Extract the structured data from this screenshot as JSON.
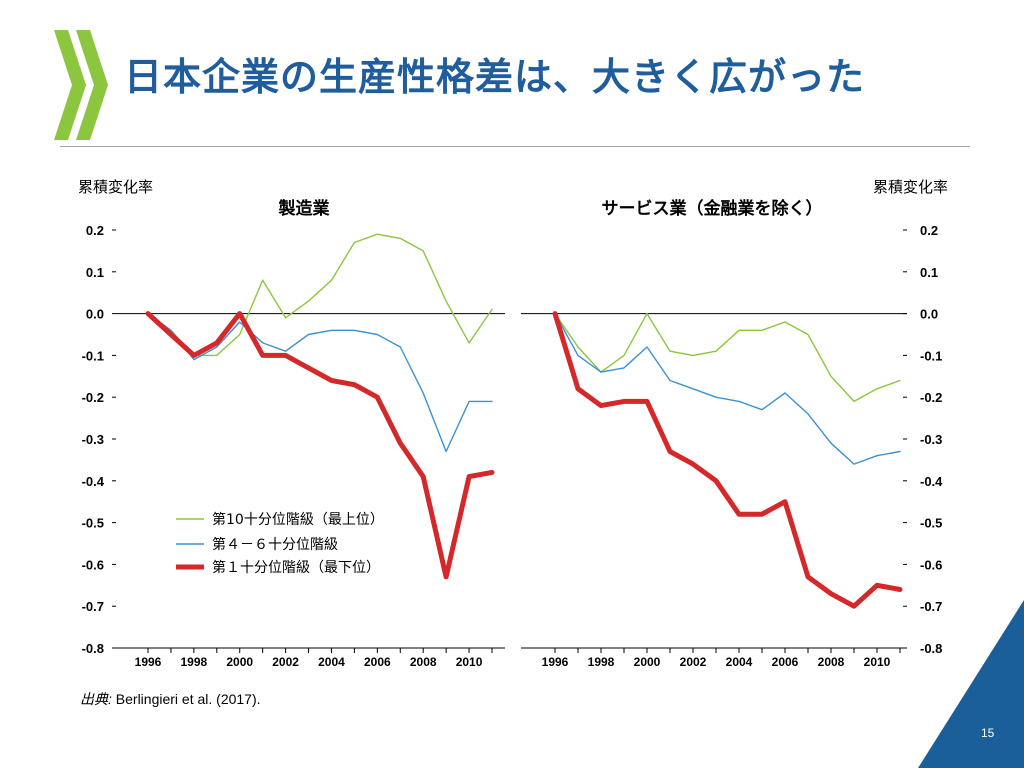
{
  "slide": {
    "title": "日本企業の生産性格差は、大きく広がった",
    "source_prefix": "出典:",
    "source_text": " Berlingieri et al. (2017).",
    "page_number": "15",
    "colors": {
      "title": "#1f5d9c",
      "logo": "#8cc63f",
      "corner": "#1a5f99",
      "rule": "#a6a6a6"
    }
  },
  "icons": {
    "logo": "oecd-chevron-logo",
    "corner": "blue-corner-triangle"
  },
  "chart_data": [
    {
      "type": "line",
      "title": "製造業",
      "ylabel": "累積変化率",
      "ylim": [
        -0.8,
        0.2
      ],
      "yticks": [
        "0.2",
        "0.1",
        "0.0",
        "-0.1",
        "-0.2",
        "-0.3",
        "-0.4",
        "-0.5",
        "-0.6",
        "-0.7",
        "-0.8"
      ],
      "xticks": [
        "1996",
        "1998",
        "2000",
        "2002",
        "2004",
        "2006",
        "2008",
        "2010"
      ],
      "x": [
        1996,
        1997,
        1998,
        1999,
        2000,
        2001,
        2002,
        2003,
        2004,
        2005,
        2006,
        2007,
        2008,
        2009,
        2010,
        2011
      ],
      "series": [
        {
          "name": "第10十分位階級（最上位）",
          "color": "#8cc63f",
          "width": 1.4,
          "values": [
            0.0,
            -0.04,
            -0.1,
            -0.1,
            -0.05,
            0.08,
            -0.01,
            0.03,
            0.08,
            0.17,
            0.19,
            0.18,
            0.15,
            0.03,
            -0.07,
            0.01
          ]
        },
        {
          "name": "第４－６十分位階級",
          "color": "#3c91d0",
          "width": 1.4,
          "values": [
            0.0,
            -0.04,
            -0.11,
            -0.08,
            -0.02,
            -0.07,
            -0.09,
            -0.05,
            -0.04,
            -0.04,
            -0.05,
            -0.08,
            -0.19,
            -0.33,
            -0.21,
            -0.21
          ]
        },
        {
          "name": "第１十分位階級（最下位）",
          "color": "#d4282a",
          "width": 5,
          "values": [
            0.0,
            -0.05,
            -0.1,
            -0.07,
            0.0,
            -0.1,
            -0.1,
            -0.13,
            -0.16,
            -0.17,
            -0.2,
            -0.31,
            -0.39,
            -0.63,
            -0.39,
            -0.38
          ]
        }
      ]
    },
    {
      "type": "line",
      "title": "サービス業（金融業を除く）",
      "ylabel": "累積変化率",
      "ylim": [
        -0.8,
        0.2
      ],
      "yticks": [
        "0.2",
        "0.1",
        "0.0",
        "-0.1",
        "-0.2",
        "-0.3",
        "-0.4",
        "-0.5",
        "-0.6",
        "-0.7",
        "-0.8"
      ],
      "xticks": [
        "1996",
        "1998",
        "2000",
        "2002",
        "2004",
        "2006",
        "2008",
        "2010"
      ],
      "x": [
        1996,
        1997,
        1998,
        1999,
        2000,
        2001,
        2002,
        2003,
        2004,
        2005,
        2006,
        2007,
        2008,
        2009,
        2010,
        2011
      ],
      "series": [
        {
          "name": "第10十分位階級（最上位）",
          "color": "#8cc63f",
          "width": 1.4,
          "values": [
            0.0,
            -0.08,
            -0.14,
            -0.1,
            0.0,
            -0.09,
            -0.1,
            -0.09,
            -0.04,
            -0.04,
            -0.02,
            -0.05,
            -0.15,
            -0.21,
            -0.18,
            -0.16
          ]
        },
        {
          "name": "第４－６十分位階級",
          "color": "#3c91d0",
          "width": 1.4,
          "values": [
            0.0,
            -0.1,
            -0.14,
            -0.13,
            -0.08,
            -0.16,
            -0.18,
            -0.2,
            -0.21,
            -0.23,
            -0.19,
            -0.24,
            -0.31,
            -0.36,
            -0.34,
            -0.33
          ]
        },
        {
          "name": "第１十分位階級（最下位）",
          "color": "#d4282a",
          "width": 5,
          "values": [
            0.0,
            -0.18,
            -0.22,
            -0.21,
            -0.21,
            -0.33,
            -0.36,
            -0.4,
            -0.48,
            -0.48,
            -0.45,
            -0.63,
            -0.67,
            -0.7,
            -0.65,
            -0.66
          ]
        }
      ]
    }
  ]
}
